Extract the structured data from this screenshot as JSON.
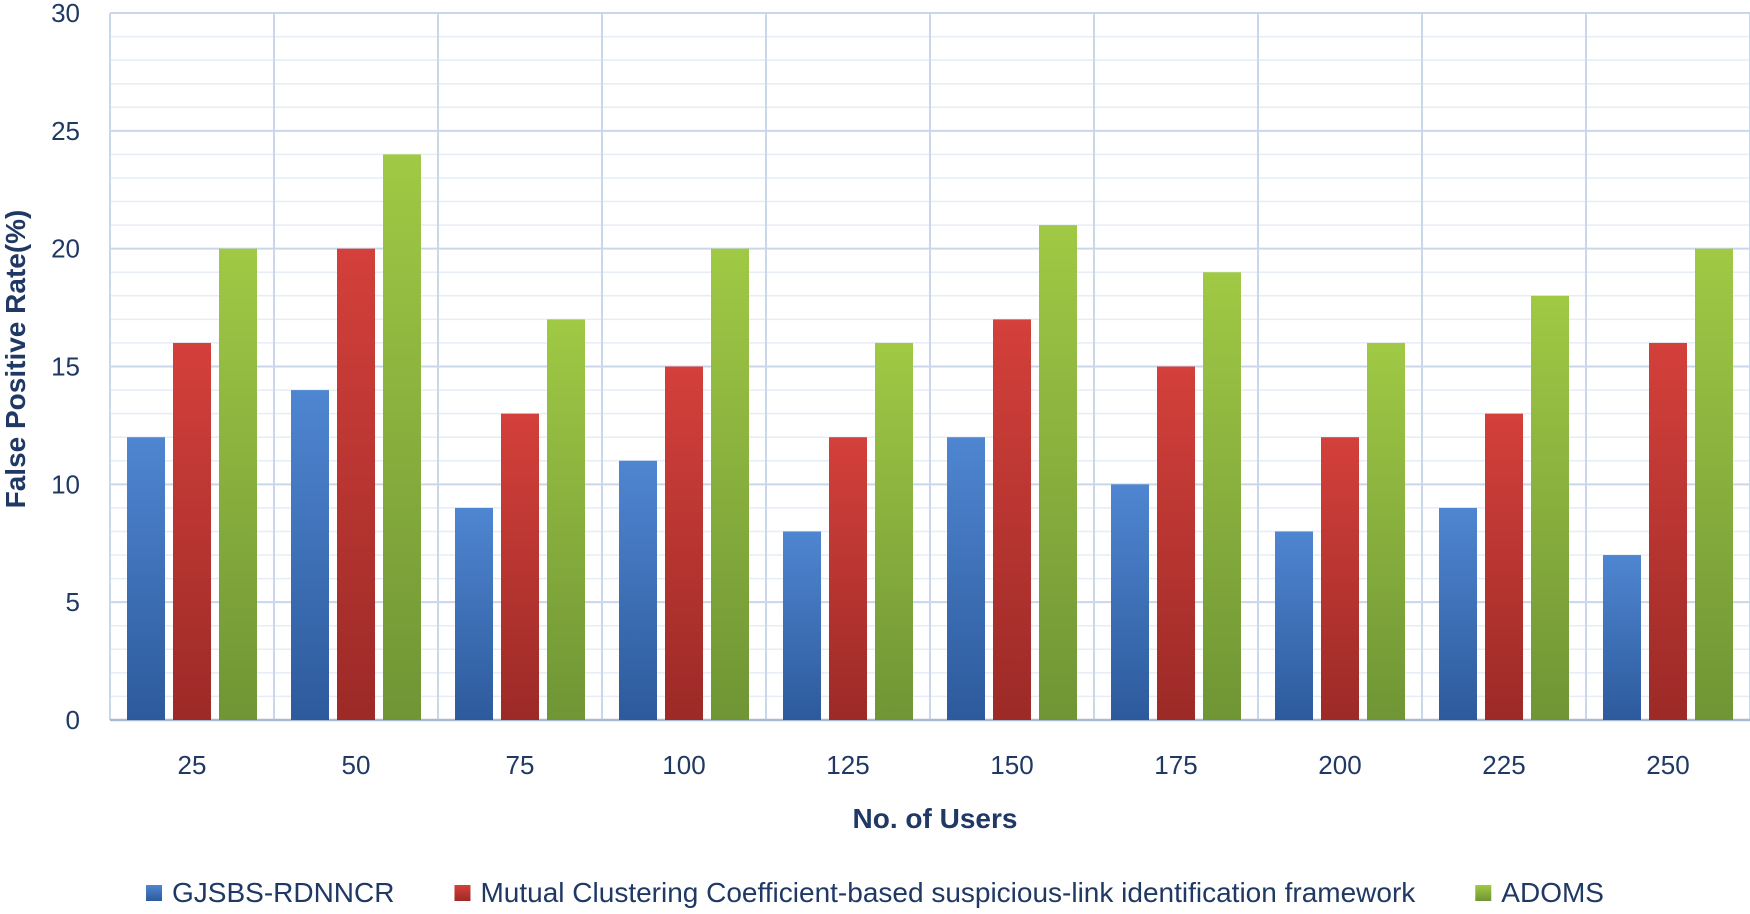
{
  "chart_data": {
    "type": "bar",
    "title": "",
    "xlabel": "No. of Users",
    "ylabel": "False Positive Rate(%)",
    "ylim": [
      0,
      30
    ],
    "yticks": [
      0,
      5,
      10,
      15,
      20,
      25,
      30
    ],
    "grid": true,
    "legend_position": "bottom",
    "categories": [
      "25",
      "50",
      "75",
      "100",
      "125",
      "150",
      "175",
      "200",
      "225",
      "250"
    ],
    "series": [
      {
        "name": "GJSBS-RDNNCR",
        "color": "#3e74c4",
        "values": [
          12,
          14,
          9,
          11,
          8,
          12,
          10,
          8,
          9,
          7
        ]
      },
      {
        "name": "Mutual Clustering Coefficient-based suspicious-link identification framework",
        "color": "#c83b36",
        "values": [
          16,
          20,
          13,
          15,
          12,
          17,
          15,
          12,
          13,
          16
        ]
      },
      {
        "name": "ADOMS",
        "color": "#8db73c",
        "values": [
          20,
          24,
          17,
          20,
          16,
          21,
          19,
          16,
          18,
          20
        ]
      }
    ]
  }
}
